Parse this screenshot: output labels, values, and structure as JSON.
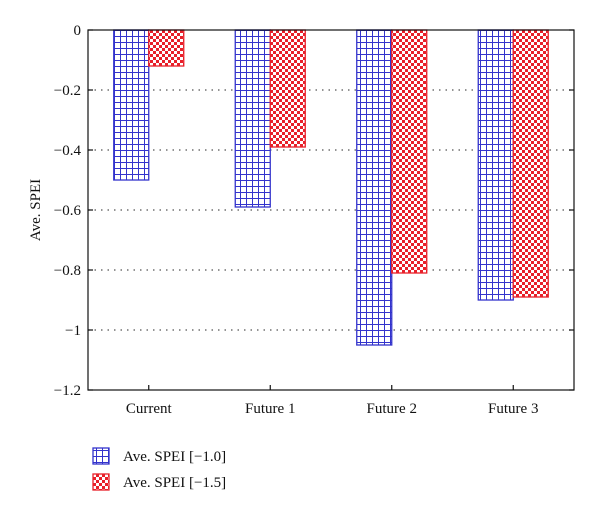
{
  "chart_data": {
    "type": "bar",
    "categories": [
      "Current",
      "Future 1",
      "Future 2",
      "Future 3"
    ],
    "series": [
      {
        "name": "Ave. SPEI [−1.0]",
        "values": [
          -0.5,
          -0.59,
          -1.05,
          -0.9
        ],
        "color": "#3333cc",
        "pattern": "grid"
      },
      {
        "name": "Ave. SPEI [−1.5]",
        "values": [
          -0.12,
          -0.39,
          -0.81,
          -0.89
        ],
        "color": "#e8202a",
        "pattern": "checker"
      }
    ],
    "title": "",
    "xlabel": "",
    "ylabel": "Ave. SPEI",
    "ylim": [
      -1.2,
      0
    ],
    "yticks": [
      0,
      -0.2,
      -0.4,
      -0.6,
      -0.8,
      -1,
      -1.2
    ],
    "ytick_labels": [
      "0",
      "−0.2",
      "−0.4",
      "−0.6",
      "−0.8",
      "−1",
      "−1.2"
    ],
    "grid": "horizontal-dotted",
    "legend_position": "bottom-left"
  }
}
